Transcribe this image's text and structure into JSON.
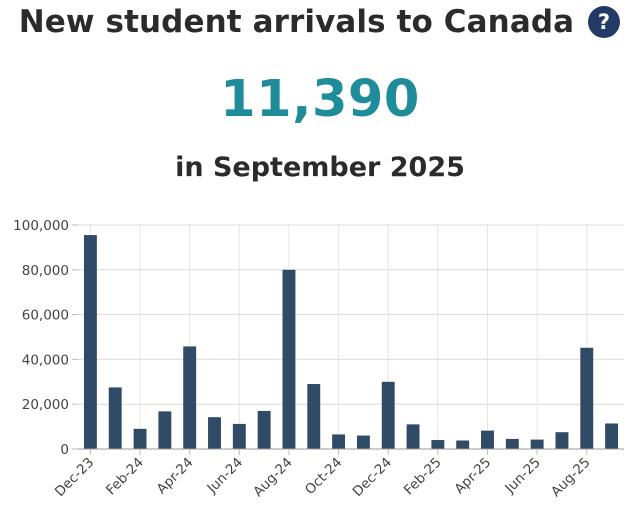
{
  "header": {
    "title": "New student arrivals to Canada",
    "help_icon": "question-circle-icon"
  },
  "highlight": {
    "value": "11,390",
    "caption": "in September 2025"
  },
  "colors": {
    "bar": "#2f4b66",
    "highlight": "#1f8c9a",
    "help_icon": "#243a66",
    "grid": "#dddddd"
  },
  "chart_data": {
    "type": "bar",
    "categories": [
      "Dec-23",
      "Jan-24",
      "Feb-24",
      "Mar-24",
      "Apr-24",
      "May-24",
      "Jun-24",
      "Jul-24",
      "Aug-24",
      "Sep-24",
      "Oct-24",
      "Nov-24",
      "Dec-24",
      "Jan-25",
      "Feb-25",
      "Mar-25",
      "Apr-25",
      "May-25",
      "Jun-25",
      "Jul-25",
      "Aug-25",
      "Sep-25"
    ],
    "tick_labels": [
      "Dec-23",
      "Feb-24",
      "Apr-24",
      "Jun-24",
      "Aug-24",
      "Oct-24",
      "Dec-24",
      "Feb-25",
      "Apr-25",
      "Jun-25",
      "Aug-25"
    ],
    "values": [
      95500,
      27500,
      9000,
      16800,
      45800,
      14200,
      11200,
      17000,
      80000,
      29000,
      6500,
      6000,
      30000,
      11000,
      4000,
      3800,
      8200,
      4500,
      4200,
      7500,
      45200,
      11390
    ],
    "ylim": [
      0,
      100000
    ],
    "yticks": [
      0,
      20000,
      40000,
      60000,
      80000,
      100000
    ],
    "ytick_labels": [
      "0",
      "20,000",
      "40,000",
      "60,000",
      "80,000",
      "100,000"
    ],
    "grid": true,
    "legend": false
  }
}
